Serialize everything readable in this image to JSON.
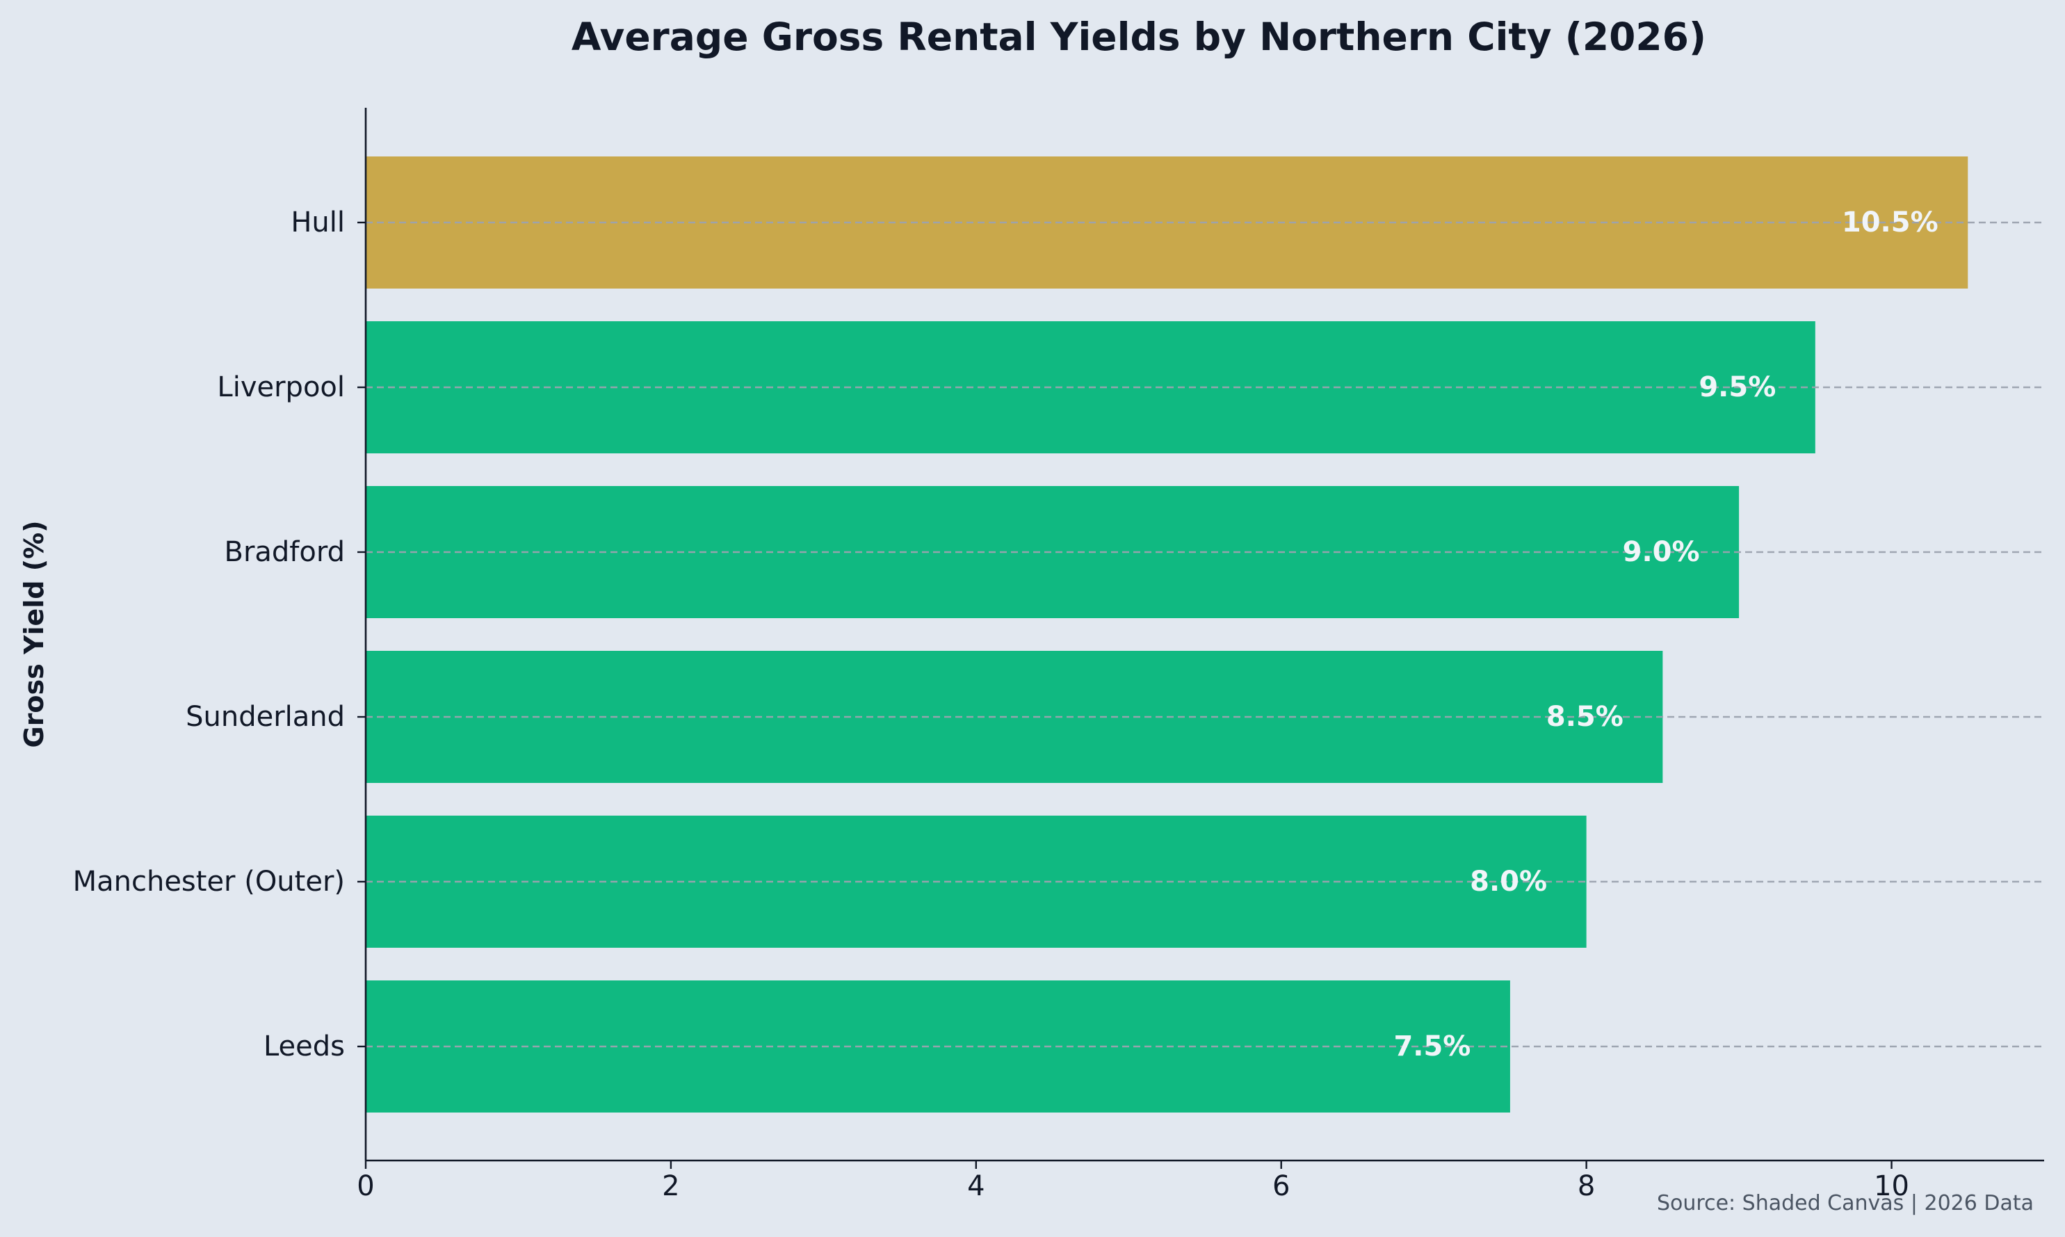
{
  "chart_data": {
    "type": "bar",
    "orientation": "horizontal",
    "title": "Average Gross Rental Yields by Northern City (2026)",
    "ylabel": "Gross Yield (%)",
    "xlabel": "",
    "categories": [
      "Leeds",
      "Manchester (Outer)",
      "Sunderland",
      "Bradford",
      "Liverpool",
      "Hull"
    ],
    "values": [
      7.5,
      8.0,
      8.5,
      9.0,
      9.5,
      10.5
    ],
    "data_labels": [
      "7.5%",
      "8.0%",
      "8.5%",
      "9.0%",
      "9.5%",
      "10.5%"
    ],
    "highlight": "Hull",
    "xlim": [
      0,
      11
    ],
    "xticks": [
      0,
      2,
      4,
      6,
      8,
      10
    ],
    "grid": "dashed lines at category positions",
    "colors": {
      "background": "#e2e8f0",
      "bar": "#10b981",
      "highlight_bar": "#c9a84b",
      "text": "#111827",
      "grid": "#9ca3af",
      "label": "#f1f5f9",
      "source": "#4b5563"
    },
    "source_note": "Source: Shaded Canvas | 2026 Data"
  }
}
